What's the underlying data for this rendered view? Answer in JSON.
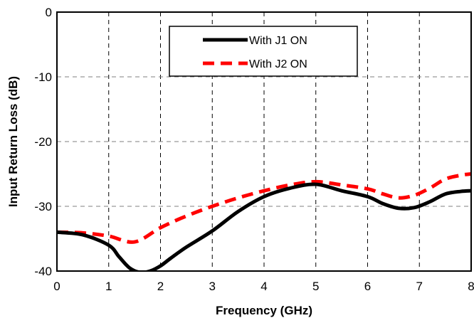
{
  "chart_data": {
    "type": "line",
    "xlabel": "Frequency (GHz)",
    "ylabel": "Input Return Loss (dB)",
    "xlim": [
      0,
      8
    ],
    "ylim": [
      -40,
      0
    ],
    "xticks": [
      "0",
      "1",
      "2",
      "3",
      "4",
      "5",
      "6",
      "7",
      "8"
    ],
    "yticks": [
      "0",
      "-10",
      "-20",
      "-30",
      "-40"
    ],
    "grid": true,
    "legend_position": "top-center",
    "series": [
      {
        "name": "With J1 ON",
        "color": "#000000",
        "style": "solid",
        "x": [
          0,
          0.5,
          1.0,
          1.2,
          1.4,
          1.6,
          1.8,
          2.0,
          2.2,
          2.5,
          3.0,
          3.5,
          4.0,
          4.5,
          5.0,
          5.5,
          6.0,
          6.3,
          6.6,
          6.9,
          7.2,
          7.5,
          7.8,
          8.0
        ],
        "y": [
          -34,
          -34.4,
          -36,
          -37.8,
          -39.5,
          -40.2,
          -40.0,
          -39.2,
          -38.0,
          -36.3,
          -33.8,
          -30.8,
          -28.5,
          -27.2,
          -26.6,
          -27.6,
          -28.5,
          -29.6,
          -30.3,
          -30.2,
          -29.3,
          -28.1,
          -27.7,
          -27.6
        ]
      },
      {
        "name": "With J2 ON",
        "color": "#ff0000",
        "style": "dashed",
        "x": [
          0,
          0.5,
          1.0,
          1.5,
          2.0,
          2.5,
          3.0,
          3.5,
          4.0,
          4.5,
          5.0,
          5.5,
          6.0,
          6.3,
          6.6,
          6.9,
          7.2,
          7.5,
          7.8,
          8.0
        ],
        "y": [
          -34,
          -34.1,
          -34.6,
          -35.5,
          -33.3,
          -31.5,
          -30.0,
          -28.7,
          -27.6,
          -26.7,
          -26.2,
          -26.7,
          -27.3,
          -28.1,
          -28.7,
          -28.3,
          -27.2,
          -25.8,
          -25.2,
          -25.0
        ]
      }
    ]
  }
}
